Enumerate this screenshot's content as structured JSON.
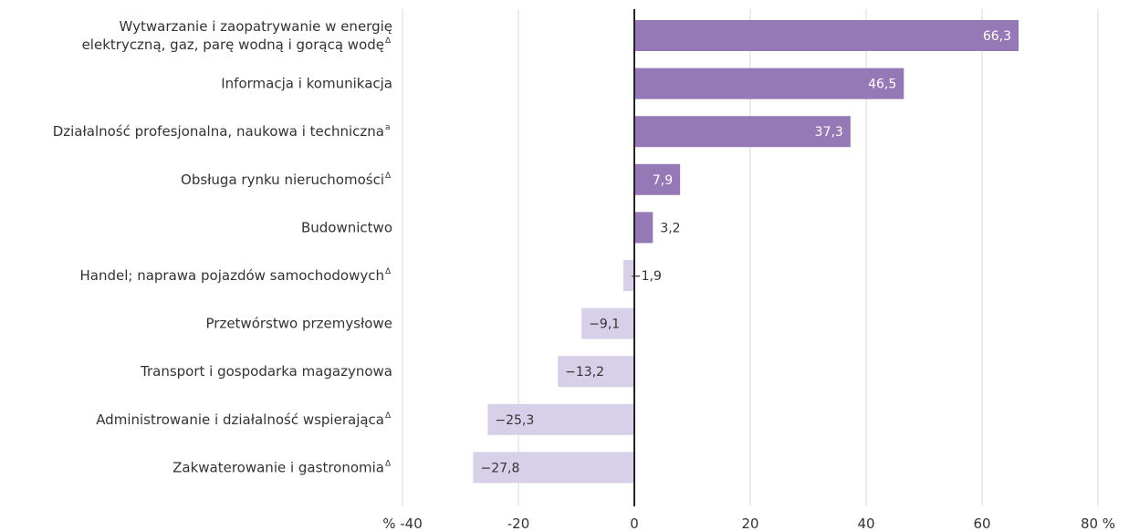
{
  "colors": {
    "positive": "#9579b6",
    "negative": "#d8d0e8",
    "grid": "#d9d9d9",
    "zero_axis": "#222222",
    "text": "#333333",
    "label_inside": "#ffffff"
  },
  "chart_data": {
    "type": "bar",
    "orientation": "horizontal",
    "title": "",
    "xlabel": "",
    "ylabel": "",
    "xlim": [
      -40,
      80
    ],
    "grid": true,
    "categories": [
      {
        "lines": [
          "Wytwarzanie i zaopatrywanie w energię",
          "elektryczną, gaz, parę wodną i gorącą wodę"
        ],
        "mark": "Δ"
      },
      {
        "lines": [
          "Informacja i komunikacja"
        ],
        "mark": ""
      },
      {
        "lines": [
          "Działalność profesjonalna, naukowa i techniczna"
        ],
        "mark": "a"
      },
      {
        "lines": [
          "Obsługa rynku nieruchomości"
        ],
        "mark": "Δ"
      },
      {
        "lines": [
          "Budownictwo"
        ],
        "mark": ""
      },
      {
        "lines": [
          "Handel; naprawa pojazdów samochodowych"
        ],
        "mark": "Δ"
      },
      {
        "lines": [
          "Przetwórstwo przemysłowe"
        ],
        "mark": ""
      },
      {
        "lines": [
          "Transport i gospodarka magazynowa"
        ],
        "mark": ""
      },
      {
        "lines": [
          "Administrowanie i działalność wspierająca"
        ],
        "mark": "Δ"
      },
      {
        "lines": [
          "Zakwaterowanie i gastronomia"
        ],
        "mark": "Δ"
      }
    ],
    "values": [
      66.3,
      46.5,
      37.3,
      7.9,
      3.2,
      -1.9,
      -9.1,
      -13.2,
      -25.3,
      -27.8
    ],
    "value_labels": [
      "66,3",
      "46,5",
      "37,3",
      "7,9",
      "3,2",
      "−1,9",
      "−9,1",
      "−13,2",
      "−25,3",
      "−27,8"
    ],
    "ticks": [
      -40,
      -20,
      0,
      20,
      40,
      60,
      80
    ],
    "tick_labels": [
      "% -40",
      "-20",
      "0",
      "20",
      "40",
      "60",
      "80 %"
    ]
  }
}
